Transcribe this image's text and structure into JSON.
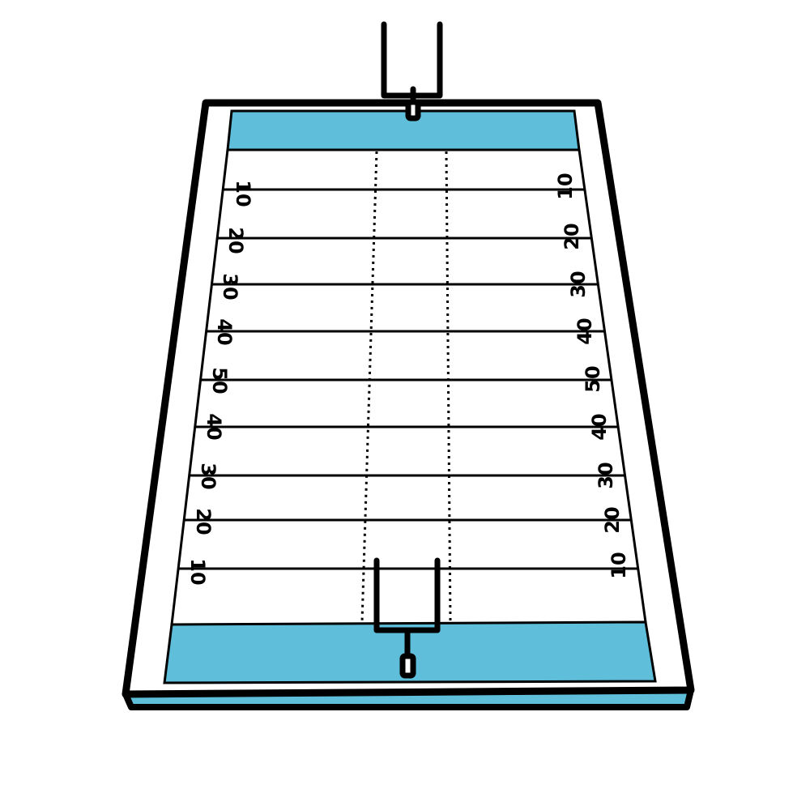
{
  "colors": {
    "endzone": "#5fbfdb",
    "field": "#ffffff",
    "line": "#000000"
  },
  "yard_numbers": {
    "left": [
      "10",
      "20",
      "30",
      "40",
      "50",
      "40",
      "30",
      "20",
      "10"
    ],
    "right": [
      "10",
      "20",
      "30",
      "40",
      "50",
      "40",
      "30",
      "20",
      "10"
    ]
  },
  "icons": [
    "goalpost-top-icon",
    "goalpost-bottom-icon"
  ]
}
